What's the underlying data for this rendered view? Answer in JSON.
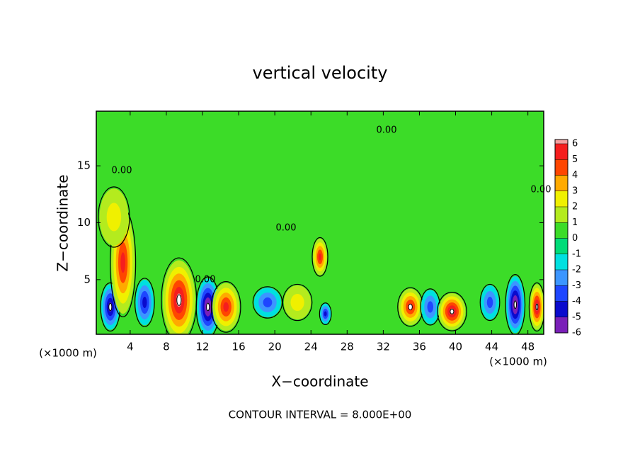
{
  "chart_data": {
    "type": "contour",
    "title": "vertical velocity",
    "x_label": "X−coordinate",
    "y_label": "Z−coordinate",
    "x_unit_label": "(×1000 m)",
    "footer": "CONTOUR INTERVAL = 8.000E+00",
    "contour_labels": [
      "0.00",
      "0.00",
      "0.00",
      "0.00",
      "0.00"
    ],
    "xlim": [
      0.25,
      49.75
    ],
    "ylim": [
      0.2,
      19.8
    ],
    "xticks": [
      4,
      8,
      12,
      16,
      20,
      24,
      28,
      32,
      36,
      40,
      44,
      48
    ],
    "yticks": [
      5,
      10,
      15
    ],
    "colorbar": {
      "levels": [
        -6,
        -5,
        -4,
        -3,
        -2,
        -1,
        0,
        1,
        2,
        3,
        4,
        5,
        6
      ],
      "colors": [
        "#7a1fb8",
        "#0a0acd",
        "#1e46ff",
        "#3c96ff",
        "#00e0e0",
        "#00dc78",
        "#3cdc28",
        "#b4eb1e",
        "#f0f000",
        "#ffaa00",
        "#ff4600",
        "#f51e1e"
      ],
      "top_color": "#f5a0a0"
    },
    "cells": [
      {
        "x": 1.8,
        "z": 2.6,
        "value": -5,
        "width": 2,
        "height": 4
      },
      {
        "x": 3.2,
        "z": 6.5,
        "value": 4.5,
        "width": 2.6,
        "height": 9
      },
      {
        "x": 2.2,
        "z": 10.5,
        "value": 2,
        "width": 3.2,
        "height": 5
      },
      {
        "x": 5.6,
        "z": 3,
        "value": -4,
        "width": 2,
        "height": 4
      },
      {
        "x": 9.4,
        "z": 3.2,
        "value": 6,
        "width": 3.6,
        "height": 7
      },
      {
        "x": 12.6,
        "z": 2.6,
        "value": -5.5,
        "width": 2.4,
        "height": 5
      },
      {
        "x": 14.6,
        "z": 2.6,
        "value": 4.5,
        "width": 3,
        "height": 4.2
      },
      {
        "x": 19.2,
        "z": 3,
        "value": -3,
        "width": 3,
        "height": 2.6
      },
      {
        "x": 22.5,
        "z": 3,
        "value": 1.5,
        "width": 3,
        "height": 3
      },
      {
        "x": 25,
        "z": 7,
        "value": 4.5,
        "width": 1.6,
        "height": 3.2
      },
      {
        "x": 25.6,
        "z": 2,
        "value": -4,
        "width": 1.2,
        "height": 1.8
      },
      {
        "x": 35,
        "z": 2.6,
        "value": 5,
        "width": 2.6,
        "height": 3.2
      },
      {
        "x": 37.2,
        "z": 2.6,
        "value": -3,
        "width": 2,
        "height": 3
      },
      {
        "x": 39.6,
        "z": 2.2,
        "value": 5.5,
        "width": 3,
        "height": 3.2
      },
      {
        "x": 43.8,
        "z": 3,
        "value": -2.5,
        "width": 2,
        "height": 3
      },
      {
        "x": 46.6,
        "z": 2.8,
        "value": -5.5,
        "width": 2,
        "height": 5
      },
      {
        "x": 49,
        "z": 2.6,
        "value": 5.5,
        "width": 1.6,
        "height": 4
      }
    ]
  }
}
